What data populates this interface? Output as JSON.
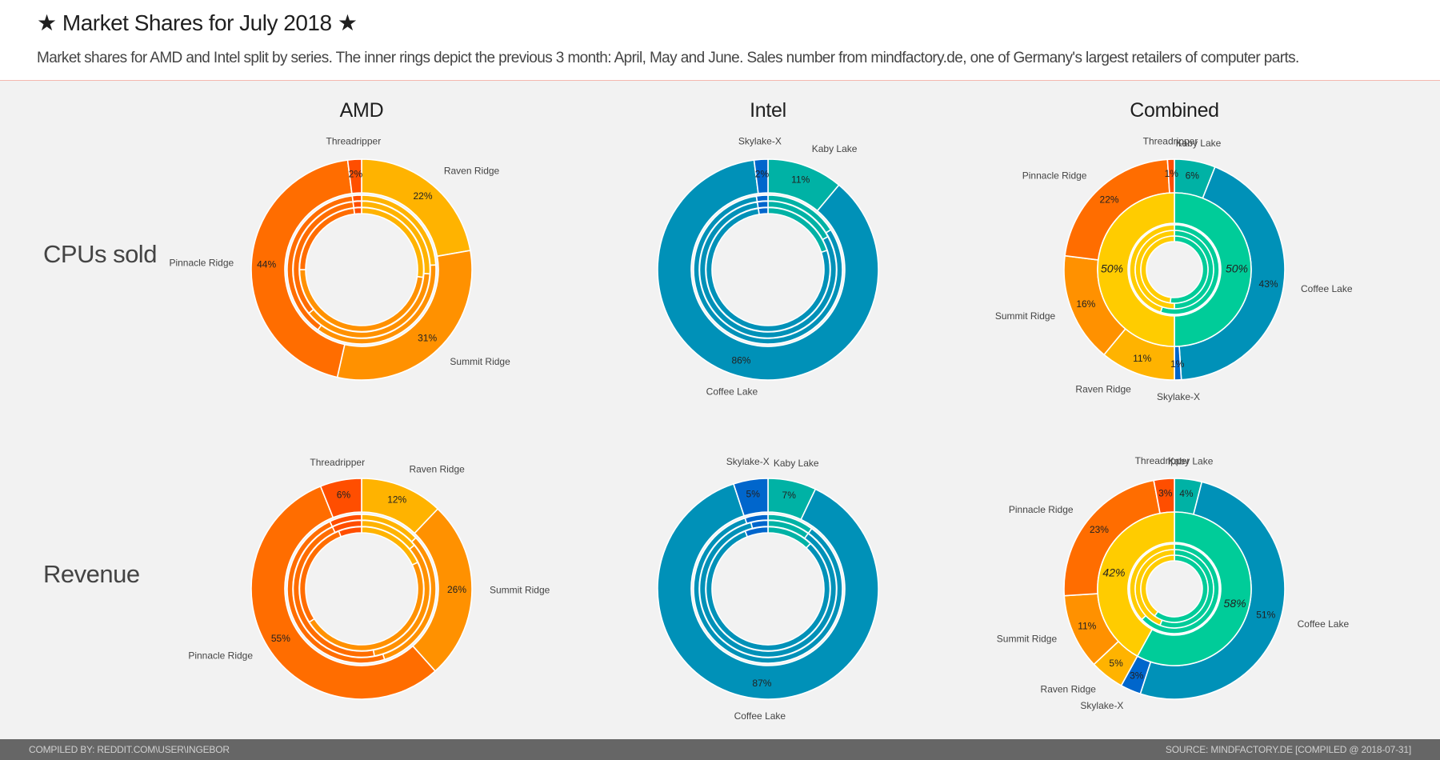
{
  "header": {
    "title": "★ Market Shares for July 2018 ★",
    "subtitle": "Market shares for AMD and Intel split by series. The inner rings depict the previous 3 month: April, May and June. Sales number from mindfactory.de, one of Germany's largest retailers of computer parts."
  },
  "columns": [
    "AMD",
    "Intel",
    "Combined"
  ],
  "rows": [
    "CPUs sold",
    "Revenue"
  ],
  "footer": {
    "left": "COMPILED BY: REDDIT.COM\\USER\\INGEBOR",
    "right": "SOURCE: MINDFACTORY.DE [COMPILED @ 2018-07-31]"
  },
  "colors": {
    "Raven Ridge": "#ffb300",
    "Summit Ridge": "#ff9100",
    "Pinnacle Ridge": "#ff6d00",
    "Threadripper": "#ff4e00",
    "Kaby Lake": "#00b2a5",
    "Coffee Lake": "#0091b8",
    "Skylake-X": "#0066cc",
    "AMD": "#ffcc00",
    "Intel": "#00cc99"
  },
  "chart_data": [
    {
      "type": "pie",
      "title": "AMD — CPUs sold",
      "column": "AMD",
      "row": "CPUs sold",
      "categories": [
        "Raven Ridge",
        "Summit Ridge",
        "Pinnacle Ridge",
        "Threadripper"
      ],
      "current": {
        "month": "July",
        "values": [
          22,
          31,
          44,
          2
        ]
      },
      "previous": [
        {
          "month": "June",
          "values": [
            24,
            36,
            38,
            2
          ]
        },
        {
          "month": "May",
          "values": [
            26,
            38,
            34,
            2
          ]
        },
        {
          "month": "April",
          "values": [
            27,
            48,
            23,
            2
          ]
        }
      ],
      "labels": {
        "Raven Ridge": "22%",
        "Summit Ridge": "31%",
        "Pinnacle Ridge": "44%",
        "Threadripper": "2%"
      }
    },
    {
      "type": "pie",
      "title": "Intel — CPUs sold",
      "column": "Intel",
      "row": "CPUs sold",
      "categories": [
        "Kaby Lake",
        "Coffee Lake",
        "Skylake-X"
      ],
      "current": {
        "month": "July",
        "values": [
          11,
          86,
          2
        ]
      },
      "previous": [
        {
          "month": "June",
          "values": [
            16,
            81.5,
            2.5
          ]
        },
        {
          "month": "May",
          "values": [
            17,
            80.5,
            2.5
          ]
        },
        {
          "month": "April",
          "values": [
            20,
            77.5,
            2.5
          ]
        }
      ],
      "labels": {
        "Kaby Lake": "11%",
        "Coffee Lake": "86%",
        "Skylake-X": "2%"
      }
    },
    {
      "type": "pie",
      "title": "Combined — CPUs sold",
      "column": "Combined",
      "row": "CPUs sold",
      "categories": [
        "Kaby Lake",
        "Coffee Lake",
        "Skylake-X",
        "Raven Ridge",
        "Summit Ridge",
        "Pinnacle Ridge",
        "Threadripper"
      ],
      "current": {
        "month": "July",
        "values": [
          6,
          43,
          1,
          11,
          16,
          22,
          1
        ]
      },
      "split": {
        "categories": [
          "Intel",
          "AMD"
        ],
        "values": [
          50,
          50
        ],
        "labels": [
          "50%",
          "50%"
        ]
      },
      "previous_split": [
        {
          "month": "June",
          "values": [
            55,
            45
          ]
        },
        {
          "month": "May",
          "values": [
            50,
            50
          ]
        },
        {
          "month": "April",
          "values": [
            52,
            48
          ]
        }
      ],
      "labels": {
        "Kaby Lake": "6%",
        "Coffee Lake": "43%",
        "Skylake-X": "1%",
        "Raven Ridge": "11%",
        "Summit Ridge": "16%",
        "Pinnacle Ridge": "22%",
        "Threadripper": "1%"
      }
    },
    {
      "type": "pie",
      "title": "AMD — Revenue",
      "column": "AMD",
      "row": "Revenue",
      "categories": [
        "Raven Ridge",
        "Summit Ridge",
        "Pinnacle Ridge",
        "Threadripper"
      ],
      "current": {
        "month": "July",
        "values": [
          12,
          26,
          55,
          6
        ]
      },
      "previous": [
        {
          "month": "June",
          "values": [
            13,
            32,
            48,
            7
          ]
        },
        {
          "month": "May",
          "values": [
            14,
            33,
            46,
            7
          ]
        },
        {
          "month": "April",
          "values": [
            18,
            48,
            28,
            6
          ]
        }
      ],
      "labels": {
        "Raven Ridge": "12%",
        "Summit Ridge": "26%",
        "Pinnacle Ridge": "55%",
        "Threadripper": "6%"
      }
    },
    {
      "type": "pie",
      "title": "Intel — Revenue",
      "column": "Intel",
      "row": "Revenue",
      "categories": [
        "Kaby Lake",
        "Coffee Lake",
        "Skylake-X"
      ],
      "current": {
        "month": "July",
        "values": [
          7,
          87,
          5
        ]
      },
      "previous": [
        {
          "month": "June",
          "values": [
            10,
            85,
            5
          ]
        },
        {
          "month": "May",
          "values": [
            10,
            86,
            4
          ]
        },
        {
          "month": "April",
          "values": [
            12,
            82,
            6
          ]
        }
      ],
      "labels": {
        "Kaby Lake": "7%",
        "Coffee Lake": "87%",
        "Skylake-X": "5%"
      }
    },
    {
      "type": "pie",
      "title": "Combined — Revenue",
      "column": "Combined",
      "row": "Revenue",
      "categories": [
        "Kaby Lake",
        "Coffee Lake",
        "Skylake-X",
        "Raven Ridge",
        "Summit Ridge",
        "Pinnacle Ridge",
        "Threadripper"
      ],
      "current": {
        "month": "July",
        "values": [
          4,
          51,
          3,
          5,
          11,
          23,
          3
        ]
      },
      "split": {
        "categories": [
          "Intel",
          "AMD"
        ],
        "values": [
          58,
          42
        ],
        "labels": [
          "58%",
          "42%"
        ]
      },
      "previous_split": [
        {
          "month": "June",
          "values": [
            63,
            37
          ]
        },
        {
          "month": "May",
          "values": [
            56,
            44
          ]
        },
        {
          "month": "April",
          "values": [
            60,
            40
          ]
        }
      ],
      "labels": {
        "Kaby Lake": "4%",
        "Coffee Lake": "51%",
        "Skylake-X": "3%",
        "Raven Ridge": "5%",
        "Summit Ridge": "11%",
        "Pinnacle Ridge": "23%",
        "Threadripper": "3%"
      }
    }
  ]
}
